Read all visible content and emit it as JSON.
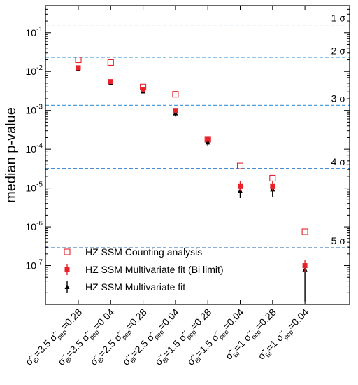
{
  "chart_data": {
    "type": "scatter",
    "title": "",
    "xlabel": "",
    "ylabel": "median p-value",
    "yscale": "log",
    "ylim": [
      1e-08,
      0.5
    ],
    "ytick_labels": [
      {
        "value": 0.1,
        "mantissa": "10",
        "exponent": "-1"
      },
      {
        "value": 0.01,
        "mantissa": "10",
        "exponent": "-2"
      },
      {
        "value": 0.001,
        "mantissa": "10",
        "exponent": "-3"
      },
      {
        "value": 0.0001,
        "mantissa": "10",
        "exponent": "-4"
      },
      {
        "value": 1e-05,
        "mantissa": "10",
        "exponent": "-5"
      },
      {
        "value": 1e-06,
        "mantissa": "10",
        "exponent": "-6"
      },
      {
        "value": 1e-07,
        "mantissa": "10",
        "exponent": "-7"
      }
    ],
    "categories": [
      {
        "sbi": "3.5",
        "spep": "0.28"
      },
      {
        "sbi": "3.5",
        "spep": "0.04"
      },
      {
        "sbi": "2.5",
        "spep": "0.28"
      },
      {
        "sbi": "2.5",
        "spep": "0.04"
      },
      {
        "sbi": "1.5",
        "spep": "0.28"
      },
      {
        "sbi": "1.5",
        "spep": "0.04"
      },
      {
        "sbi": "1",
        "spep": "0.28"
      },
      {
        "sbi": "1",
        "spep": "0.04"
      }
    ],
    "sigma_lines": [
      {
        "label": "1 σ",
        "value": 0.159,
        "color": "#bcdcf2"
      },
      {
        "label": "2 σ",
        "value": 0.0228,
        "color": "#8ec4ea"
      },
      {
        "label": "3 σ",
        "value": 0.00135,
        "color": "#4f9fdc"
      },
      {
        "label": "4 σ",
        "value": 3.17e-05,
        "color": "#2f7dcc"
      },
      {
        "label": "5 σ",
        "value": 2.87e-07,
        "color": "#1f5fb0"
      }
    ],
    "series": [
      {
        "name": "HZ SSM Counting analysis",
        "marker": "open-square",
        "color": "#e8222a",
        "values": [
          0.02,
          0.017,
          0.004,
          0.0026,
          0.00018,
          3.7e-05,
          1.8e-05,
          7.5e-07
        ]
      },
      {
        "name": "HZ SSM Multivariate fit (Bi limit)",
        "marker": "filled-square",
        "color": "#e8222a",
        "values": [
          0.0125,
          0.0055,
          0.0034,
          0.001,
          0.00018,
          1.1e-05,
          1.1e-05,
          1e-07
        ],
        "err_low": [
          0.0115,
          0.005,
          0.003,
          0.00085,
          0.00016,
          8.5e-06,
          8.5e-06,
          7e-08
        ],
        "err_high": [
          0.0135,
          0.006,
          0.0038,
          0.00115,
          0.0002,
          1.5e-05,
          1.5e-05,
          1.4e-07
        ]
      },
      {
        "name": "HZ SSM Multivariate fit",
        "marker": "filled-triangle",
        "color": "#000000",
        "values": [
          0.0115,
          0.005,
          0.0031,
          0.00085,
          0.00015,
          8.5e-06,
          9.3e-06,
          8e-08
        ],
        "err_low": [
          0.0105,
          0.0045,
          0.0028,
          0.0007,
          0.00012,
          5.5e-06,
          6e-06,
          1.2e-08
        ],
        "err_high": [
          0.0125,
          0.0055,
          0.0034,
          0.001,
          0.00017,
          1.1e-05,
          1.2e-05,
          1.1e-07
        ]
      }
    ]
  }
}
